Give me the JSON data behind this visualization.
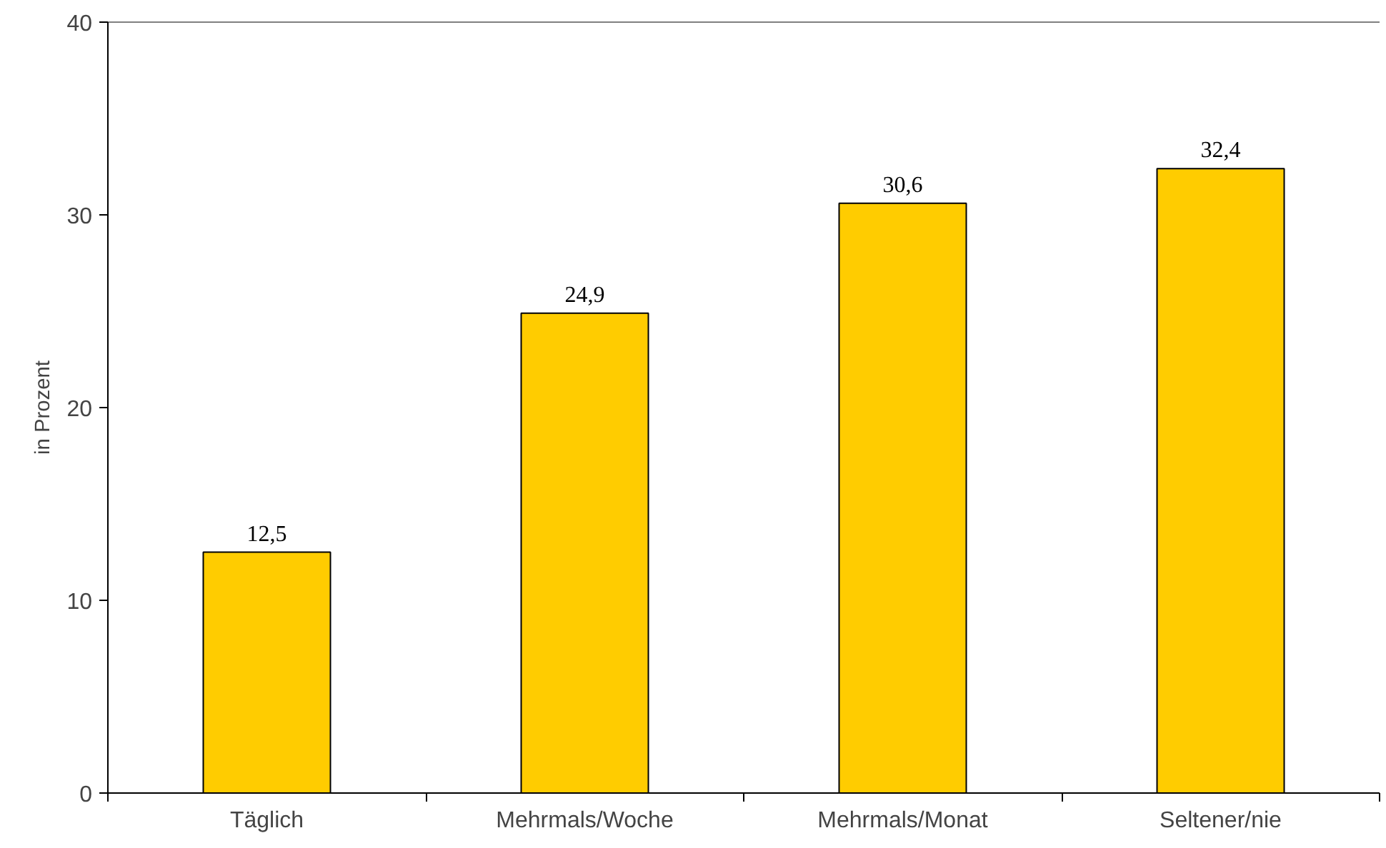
{
  "chart_data": {
    "type": "bar",
    "categories": [
      "Täglich",
      "Mehrmals/Woche",
      "Mehrmals/Monat",
      "Seltener/nie"
    ],
    "values": [
      12.5,
      24.9,
      30.6,
      32.4
    ],
    "value_labels": [
      "12,5",
      "24,9",
      "30,6",
      "32,4"
    ],
    "color": "#ffcc00",
    "ylabel": "in Prozent",
    "ylim": [
      0,
      40
    ],
    "yticks": [
      0,
      10,
      20,
      30,
      40
    ],
    "grid": false
  }
}
